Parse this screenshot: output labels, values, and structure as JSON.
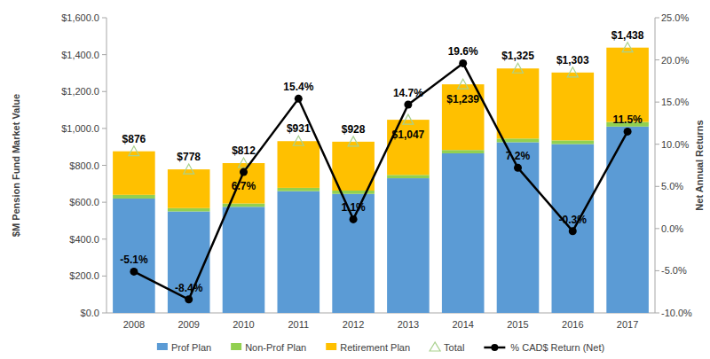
{
  "chart_data": {
    "type": "bar",
    "stacked": true,
    "grid": false,
    "legend": "bottom",
    "x_label": null,
    "y_label": "$M Pension Fund Market Value",
    "y2_label": "Net Annual Returns",
    "categories": [
      "2008",
      "2009",
      "2010",
      "2011",
      "2012",
      "2013",
      "2014",
      "2015",
      "2016",
      "2017"
    ],
    "ylim": [
      0,
      1600
    ],
    "yticks": [
      {
        "value": 0,
        "label": "$0.0"
      },
      {
        "value": 200,
        "label": "$200.0"
      },
      {
        "value": 400,
        "label": "$400.0"
      },
      {
        "value": 600,
        "label": "$600.0"
      },
      {
        "value": 800,
        "label": "$800.0"
      },
      {
        "value": 1000,
        "label": "$1,000.0"
      },
      {
        "value": 1200,
        "label": "$1,200.0"
      },
      {
        "value": 1400,
        "label": "$1,400.0"
      },
      {
        "value": 1600,
        "label": "$1,600.0"
      }
    ],
    "y2lim": [
      -10,
      25
    ],
    "y2ticks": [
      {
        "value": -10,
        "label": "-10.0%"
      },
      {
        "value": -5,
        "label": "-5.0%"
      },
      {
        "value": 0,
        "label": "0.0%"
      },
      {
        "value": 5,
        "label": "5.0%"
      },
      {
        "value": 10,
        "label": "10.0%"
      },
      {
        "value": 15,
        "label": "15.0%"
      },
      {
        "value": 20,
        "label": "20.0%"
      },
      {
        "value": 25,
        "label": "25.0%"
      }
    ],
    "series": [
      {
        "name": "Prof Plan",
        "type": "bar",
        "color": "#5b9bd5",
        "values": [
          620,
          550,
          575,
          660,
          645,
          730,
          865,
          925,
          915,
          1010
        ]
      },
      {
        "name": "Non-Prof Plan",
        "type": "bar",
        "color": "#92d050",
        "values": [
          20,
          18,
          18,
          18,
          18,
          18,
          18,
          20,
          20,
          25
        ]
      },
      {
        "name": "Retirement Plan",
        "type": "bar",
        "color": "#ffc000",
        "values": [
          236,
          210,
          219,
          253,
          265,
          299,
          356,
          380,
          368,
          403
        ]
      },
      {
        "name": "Total",
        "type": "scatter",
        "marker": "triangle",
        "color": "#a9d18e",
        "data_labels": true,
        "values": [
          876,
          778,
          812,
          931,
          928,
          1047,
          1239,
          1325,
          1303,
          1438
        ],
        "value_labels": [
          "$876",
          "$778",
          "$812",
          "$931",
          "$928",
          "$1,047",
          "$1,239",
          "$1,325",
          "$1,303",
          "$1,438"
        ]
      },
      {
        "name": "% CAD$ Return (Net)",
        "type": "line",
        "axis": "y2",
        "marker": "circle",
        "line_style": "solid",
        "color": "#000000",
        "data_labels": true,
        "values": [
          -5.1,
          -8.4,
          6.7,
          15.4,
          1.1,
          14.7,
          19.6,
          7.2,
          -0.3,
          11.5
        ],
        "value_labels": [
          "-5.1%",
          "-8.4%",
          "6.7%",
          "15.4%",
          "1.1%",
          "14.7%",
          "19.6%",
          "7.2%",
          "-0.3%",
          "11.5%"
        ]
      }
    ]
  }
}
